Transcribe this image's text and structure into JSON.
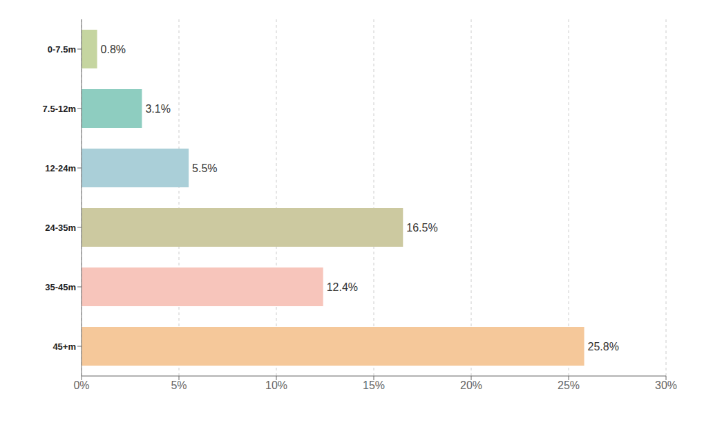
{
  "chart_data": {
    "type": "bar",
    "orientation": "horizontal",
    "categories": [
      "0-7.5m",
      "7.5-12m",
      "12-24m",
      "24-35m",
      "35-45m",
      "45+m"
    ],
    "values": [
      0.8,
      3.1,
      5.5,
      16.5,
      12.4,
      25.8
    ],
    "value_labels": [
      "0.8%",
      "3.1%",
      "5.5%",
      "16.5%",
      "12.4%",
      "25.8%"
    ],
    "data_labels": true,
    "colors": [
      "#c5d5a0",
      "#8ecdc0",
      "#aacfd8",
      "#ccc9a0",
      "#f7c5bb",
      "#f5c89a"
    ],
    "xlim": [
      0,
      30
    ],
    "xticks": [
      {
        "value": 0,
        "label": "0%"
      },
      {
        "value": 5,
        "label": "5%"
      },
      {
        "value": 10,
        "label": "10%"
      },
      {
        "value": 15,
        "label": "15%"
      },
      {
        "value": 20,
        "label": "20%"
      },
      {
        "value": 25,
        "label": "25%"
      },
      {
        "value": 30,
        "label": "30%"
      }
    ],
    "grid": true
  }
}
